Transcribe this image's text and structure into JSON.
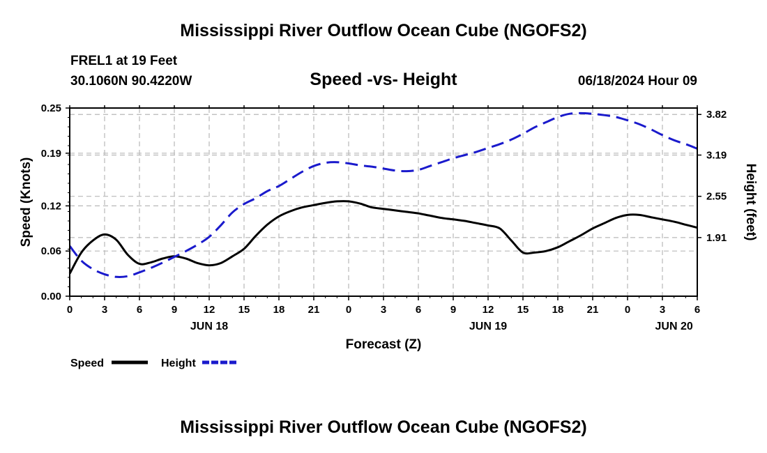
{
  "header": {
    "title": "Mississippi River Outflow Ocean Cube (NGOFS2)",
    "station_name": "FREL1 at 19 Feet",
    "station_coords": "30.1060N  90.4220W",
    "chart_title": "Speed -vs- Height",
    "date": "06/18/2024 Hour 09"
  },
  "footer": {
    "title": "Mississippi River Outflow Ocean Cube (NGOFS2)"
  },
  "chart_data": {
    "type": "line",
    "title": "Speed -vs- Height",
    "xlabel": "Forecast (Z)",
    "ylabel": "Speed (Knots)",
    "y2label": "Height (feet)",
    "x_range": [
      0,
      54
    ],
    "x_tick_labels": [
      "0",
      "3",
      "6",
      "9",
      "12",
      "15",
      "18",
      "21",
      "0",
      "3",
      "6",
      "9",
      "12",
      "15",
      "18",
      "21",
      "0",
      "3",
      "6"
    ],
    "date_labels": [
      {
        "x": 12,
        "label": "JUN 18"
      },
      {
        "x": 36,
        "label": "JUN 19"
      },
      {
        "x": 52,
        "label": "JUN 20"
      }
    ],
    "ylim": [
      0,
      0.25
    ],
    "y_ticks": [
      0,
      0.06,
      0.12,
      0.19,
      0.25
    ],
    "y_tick_labels": [
      "0.00",
      "0.06",
      "0.12",
      "0.19",
      "0.25"
    ],
    "y2lim": [
      1.0,
      3.92
    ],
    "y2_ticks": [
      1.91,
      2.55,
      3.19,
      3.82
    ],
    "y2_tick_labels": [
      "1.91",
      "2.55",
      "3.19",
      "3.82"
    ],
    "grid": true,
    "legend_position": "bottom-left",
    "series": [
      {
        "name": "Speed",
        "axis": "left",
        "color": "#000000",
        "style": "solid",
        "x": [
          0,
          1,
          2,
          3,
          4,
          5,
          6,
          7,
          8,
          9,
          10,
          11,
          12,
          13,
          14,
          15,
          16,
          17,
          18,
          19,
          20,
          21,
          22,
          23,
          24,
          25,
          26,
          27,
          28,
          29,
          30,
          31,
          32,
          33,
          34,
          35,
          36,
          37,
          38,
          39,
          40,
          41,
          42,
          43,
          44,
          45,
          46,
          47,
          48,
          49,
          50,
          51,
          52,
          53,
          54
        ],
        "values": [
          0.03,
          0.058,
          0.074,
          0.082,
          0.075,
          0.055,
          0.043,
          0.045,
          0.05,
          0.053,
          0.05,
          0.044,
          0.041,
          0.044,
          0.053,
          0.063,
          0.08,
          0.095,
          0.106,
          0.113,
          0.118,
          0.121,
          0.124,
          0.126,
          0.126,
          0.123,
          0.118,
          0.116,
          0.114,
          0.112,
          0.11,
          0.107,
          0.104,
          0.102,
          0.1,
          0.097,
          0.094,
          0.09,
          0.074,
          0.058,
          0.058,
          0.06,
          0.065,
          0.073,
          0.081,
          0.09,
          0.097,
          0.104,
          0.108,
          0.108,
          0.105,
          0.102,
          0.099,
          0.095,
          0.091
        ]
      },
      {
        "name": "Height",
        "axis": "right",
        "color": "#1a1acc",
        "style": "dashed",
        "x": [
          0,
          1,
          2,
          3,
          4,
          5,
          6,
          7,
          8,
          9,
          10,
          11,
          12,
          13,
          14,
          15,
          16,
          17,
          18,
          19,
          20,
          21,
          22,
          23,
          24,
          25,
          26,
          27,
          28,
          29,
          30,
          31,
          32,
          33,
          34,
          35,
          36,
          37,
          38,
          39,
          40,
          41,
          42,
          43,
          44,
          45,
          46,
          47,
          48,
          49,
          50,
          51,
          52,
          53,
          54
        ],
        "values": [
          1.78,
          1.55,
          1.42,
          1.34,
          1.3,
          1.31,
          1.37,
          1.44,
          1.52,
          1.61,
          1.7,
          1.8,
          1.92,
          2.1,
          2.3,
          2.43,
          2.52,
          2.63,
          2.71,
          2.82,
          2.93,
          3.02,
          3.07,
          3.08,
          3.06,
          3.03,
          3.01,
          2.98,
          2.95,
          2.94,
          2.96,
          3.02,
          3.08,
          3.14,
          3.19,
          3.24,
          3.3,
          3.36,
          3.43,
          3.52,
          3.62,
          3.7,
          3.78,
          3.83,
          3.84,
          3.83,
          3.81,
          3.78,
          3.73,
          3.67,
          3.59,
          3.5,
          3.42,
          3.36,
          3.29
        ]
      }
    ]
  }
}
